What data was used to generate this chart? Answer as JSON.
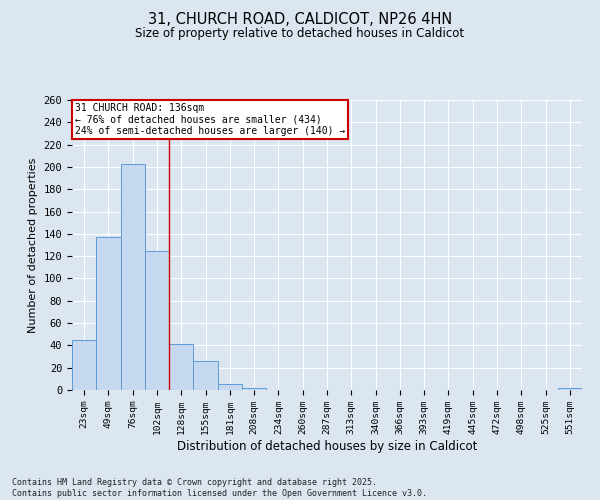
{
  "title_line1": "31, CHURCH ROAD, CALDICOT, NP26 4HN",
  "title_line2": "Size of property relative to detached houses in Caldicot",
  "xlabel": "Distribution of detached houses by size in Caldicot",
  "ylabel": "Number of detached properties",
  "categories": [
    "23sqm",
    "49sqm",
    "76sqm",
    "102sqm",
    "128sqm",
    "155sqm",
    "181sqm",
    "208sqm",
    "234sqm",
    "260sqm",
    "287sqm",
    "313sqm",
    "340sqm",
    "366sqm",
    "393sqm",
    "419sqm",
    "445sqm",
    "472sqm",
    "498sqm",
    "525sqm",
    "551sqm"
  ],
  "values": [
    45,
    137,
    203,
    125,
    41,
    26,
    5,
    2,
    0,
    0,
    0,
    0,
    0,
    0,
    0,
    0,
    0,
    0,
    0,
    0,
    2
  ],
  "bar_color": "#c6d9f0",
  "bar_edge_color": "#5b9bd5",
  "background_color": "#dce6f1",
  "grid_color": "#ffffff",
  "vline_color": "#cc0000",
  "vline_x_index": 3.5,
  "annotation_text": "31 CHURCH ROAD: 136sqm\n← 76% of detached houses are smaller (434)\n24% of semi-detached houses are larger (140) →",
  "annotation_box_color": "white",
  "annotation_box_edge_color": "#cc0000",
  "ylim": [
    0,
    260
  ],
  "yticks": [
    0,
    20,
    40,
    60,
    80,
    100,
    120,
    140,
    160,
    180,
    200,
    220,
    240,
    260
  ],
  "footer_line1": "Contains HM Land Registry data © Crown copyright and database right 2025.",
  "footer_line2": "Contains public sector information licensed under the Open Government Licence v3.0."
}
